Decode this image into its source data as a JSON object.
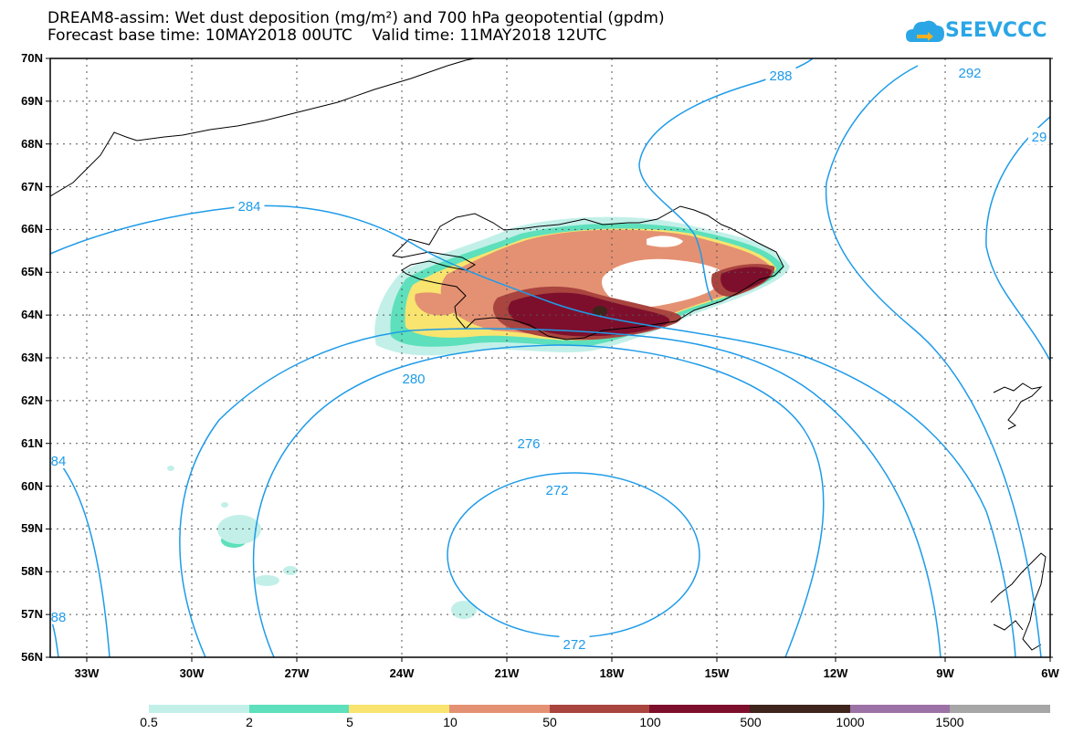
{
  "title_line1": "DREAM8-assim: Wet dust deposition (mg/m²) and 700 hPa geopotential (gpdm)",
  "title_line2": "Forecast base time: 10MAY2018 00UTC    Valid time: 11MAY2018 12UTC",
  "logo_text": "SEEVCCC",
  "logo_icon": "cloud-icon",
  "colors": {
    "contour": "#1e9be8",
    "coast": "#000000",
    "grid": "#555555"
  },
  "lat_labels": [
    "70N",
    "69N",
    "68N",
    "67N",
    "66N",
    "65N",
    "64N",
    "63N",
    "62N",
    "61N",
    "60N",
    "59N",
    "58N",
    "57N",
    "56N"
  ],
  "lon_labels": [
    "33W",
    "30W",
    "27W",
    "24W",
    "21W",
    "18W",
    "15W",
    "12W",
    "9W",
    "6W"
  ],
  "contour_labels": [
    {
      "text": "288"
    },
    {
      "text": "292"
    },
    {
      "text": "29"
    },
    {
      "text": "284"
    },
    {
      "text": "280"
    },
    {
      "text": "276"
    },
    {
      "text": "272"
    },
    {
      "text": "272"
    },
    {
      "text": "84"
    },
    {
      "text": "88"
    }
  ],
  "legend": {
    "colors": [
      "#c2f0e9",
      "#5de0bb",
      "#f8e46e",
      "#e49173",
      "#a9443f",
      "#7e0f2c",
      "#3f241c",
      "#9c71a6",
      "#a6a6a6"
    ],
    "labels": [
      "0.5",
      "2",
      "5",
      "10",
      "50",
      "100",
      "500",
      "1000",
      "1500"
    ]
  }
}
